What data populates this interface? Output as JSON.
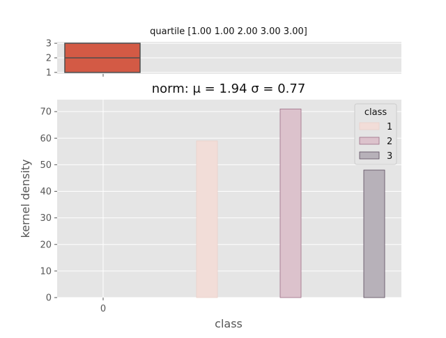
{
  "chart_data": [
    {
      "type": "box",
      "title": "quartile [1.00 1.00 2.00 3.00 3.00]",
      "quartiles": [
        1.0,
        1.0,
        2.0,
        3.0,
        3.0
      ],
      "ylim": [
        0.9,
        3.1
      ],
      "yticks": [
        1,
        2,
        3
      ],
      "xtick_labels": [
        ""
      ],
      "grid": true,
      "box_color": "#d35a45",
      "box_edge": "#4d4d4d"
    },
    {
      "type": "bar",
      "title": "norm: μ = 1.94 σ = 0.77",
      "xlabel": "class",
      "ylabel": "kernel density",
      "ylim": [
        0,
        74.5
      ],
      "yticks": [
        0,
        10,
        20,
        30,
        40,
        50,
        60,
        70
      ],
      "xtick_labels": [
        "0"
      ],
      "grid": true,
      "legend": {
        "title": "class",
        "placement": "top-right"
      },
      "series": [
        {
          "name": "1",
          "values": [
            59
          ],
          "color": "#f2ddd8",
          "edge": "#ead0c9"
        },
        {
          "name": "2",
          "values": [
            71
          ],
          "color": "#dcc2cc",
          "edge": "#9c6d85"
        },
        {
          "name": "3",
          "values": [
            48
          ],
          "color": "#b7b1b9",
          "edge": "#5a4a5e"
        }
      ]
    }
  ]
}
